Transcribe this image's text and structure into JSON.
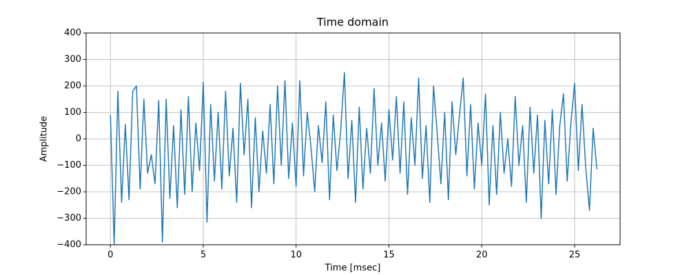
{
  "chart_data": {
    "type": "line",
    "title": "Time domain",
    "xlabel": "Time [msec]",
    "ylabel": "Amplitude",
    "x": [
      0,
      0.2,
      0.4,
      0.6,
      0.8,
      1.0,
      1.2,
      1.4,
      1.6,
      1.8,
      2.0,
      2.2,
      2.4,
      2.6,
      2.8,
      3.0,
      3.2,
      3.4,
      3.6,
      3.8,
      4.0,
      4.2,
      4.4,
      4.6,
      4.8,
      5.0,
      5.2,
      5.4,
      5.6,
      5.8,
      6.0,
      6.2,
      6.4,
      6.6,
      6.8,
      7.0,
      7.2,
      7.4,
      7.6,
      7.8,
      8.0,
      8.2,
      8.4,
      8.6,
      8.8,
      9.0,
      9.2,
      9.4,
      9.6,
      9.8,
      10.0,
      10.2,
      10.4,
      10.6,
      10.8,
      11.0,
      11.2,
      11.4,
      11.6,
      11.8,
      12.0,
      12.2,
      12.4,
      12.6,
      12.8,
      13.0,
      13.2,
      13.4,
      13.6,
      13.8,
      14.0,
      14.2,
      14.4,
      14.6,
      14.8,
      15.0,
      15.2,
      15.4,
      15.6,
      15.8,
      16.0,
      16.2,
      16.4,
      16.6,
      16.8,
      17.0,
      17.2,
      17.4,
      17.6,
      17.8,
      18.0,
      18.2,
      18.4,
      18.6,
      18.8,
      19.0,
      19.2,
      19.4,
      19.6,
      19.8,
      20.0,
      20.2,
      20.4,
      20.6,
      20.8,
      21.0,
      21.2,
      21.4,
      21.6,
      21.8,
      22.0,
      22.2,
      22.4,
      22.6,
      22.8,
      23.0,
      23.2,
      23.4,
      23.6,
      23.8,
      24.0,
      24.2,
      24.4,
      24.6,
      24.8,
      25.0,
      25.2,
      25.4,
      25.6,
      25.8,
      26.0,
      26.2
    ],
    "series": [
      {
        "color": "#1f77b4",
        "values": [
          90,
          -400,
          180,
          -240,
          55,
          -230,
          180,
          200,
          -190,
          150,
          -130,
          -60,
          -170,
          145,
          -390,
          150,
          -225,
          50,
          -260,
          110,
          -210,
          160,
          -200,
          60,
          -120,
          215,
          -315,
          130,
          -160,
          100,
          -190,
          180,
          -140,
          40,
          -240,
          210,
          -60,
          150,
          -260,
          80,
          -200,
          30,
          -130,
          130,
          -170,
          200,
          -100,
          220,
          -150,
          60,
          -180,
          220,
          -140,
          100,
          -30,
          -200,
          50,
          -90,
          140,
          -230,
          90,
          -120,
          30,
          250,
          -150,
          70,
          -240,
          120,
          -190,
          40,
          -130,
          190,
          -100,
          60,
          -160,
          110,
          -80,
          160,
          -130,
          140,
          -210,
          80,
          -100,
          230,
          -150,
          50,
          -240,
          200,
          20,
          -170,
          100,
          -230,
          140,
          -60,
          90,
          230,
          -140,
          130,
          -190,
          60,
          -100,
          170,
          -250,
          50,
          -210,
          100,
          -130,
          0,
          -180,
          160,
          -100,
          50,
          -240,
          120,
          -130,
          90,
          -300,
          70,
          -170,
          110,
          -210,
          50,
          170,
          -160,
          60,
          210,
          -120,
          130,
          -110,
          -270,
          40,
          -115
        ]
      }
    ],
    "xlim": [
      -1.31,
      27.45
    ],
    "xticks": [
      0,
      5,
      10,
      15,
      20,
      25
    ],
    "ylim": [
      -400,
      400
    ],
    "yticks": [
      {
        "value": -400,
        "label": "−400"
      },
      {
        "value": -300,
        "label": "−300"
      },
      {
        "value": -200,
        "label": "−200"
      },
      {
        "value": -100,
        "label": "−100"
      },
      0,
      100,
      200,
      300,
      400
    ],
    "grid": true
  }
}
